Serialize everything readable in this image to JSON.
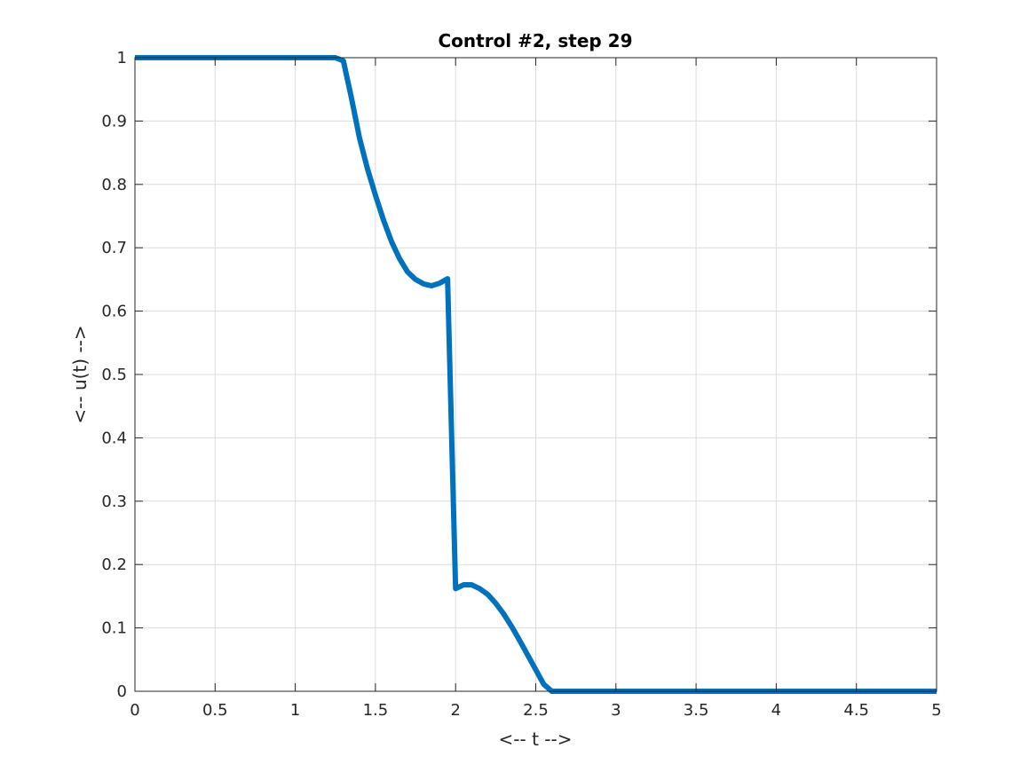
{
  "chart_data": {
    "type": "line",
    "title": "Control #2, step 29",
    "xlabel": "<-- t -->",
    "ylabel": "<-- u(t) -->",
    "xlim": [
      0,
      5
    ],
    "ylim": [
      0,
      1
    ],
    "grid": true,
    "xticks": [
      0,
      0.5,
      1,
      1.5,
      2,
      2.5,
      3,
      3.5,
      4,
      4.5,
      5
    ],
    "xtick_labels": [
      "0",
      "0.5",
      "1",
      "1.5",
      "2",
      "2.5",
      "3",
      "3.5",
      "4",
      "4.5",
      "5"
    ],
    "yticks": [
      0,
      0.1,
      0.2,
      0.3,
      0.4,
      0.5,
      0.6,
      0.7,
      0.8,
      0.9,
      1
    ],
    "ytick_labels": [
      "0",
      "0.1",
      "0.2",
      "0.3",
      "0.4",
      "0.5",
      "0.6",
      "0.7",
      "0.8",
      "0.9",
      "1"
    ],
    "series": [
      {
        "color": "#0072BD",
        "x": [
          0,
          1.25,
          1.3,
          1.35,
          1.4,
          1.45,
          1.5,
          1.55,
          1.6,
          1.65,
          1.7,
          1.75,
          1.8,
          1.85,
          1.9,
          1.95,
          2.0,
          2.05,
          2.1,
          2.15,
          2.2,
          2.25,
          2.3,
          2.35,
          2.4,
          2.45,
          2.5,
          2.55,
          2.6,
          5
        ],
        "y": [
          1,
          1,
          0.995,
          0.937,
          0.874,
          0.825,
          0.783,
          0.744,
          0.71,
          0.683,
          0.662,
          0.65,
          0.643,
          0.64,
          0.644,
          0.651,
          0.162,
          0.168,
          0.168,
          0.162,
          0.153,
          0.139,
          0.122,
          0.102,
          0.08,
          0.057,
          0.034,
          0.011,
          0,
          0
        ]
      }
    ]
  }
}
